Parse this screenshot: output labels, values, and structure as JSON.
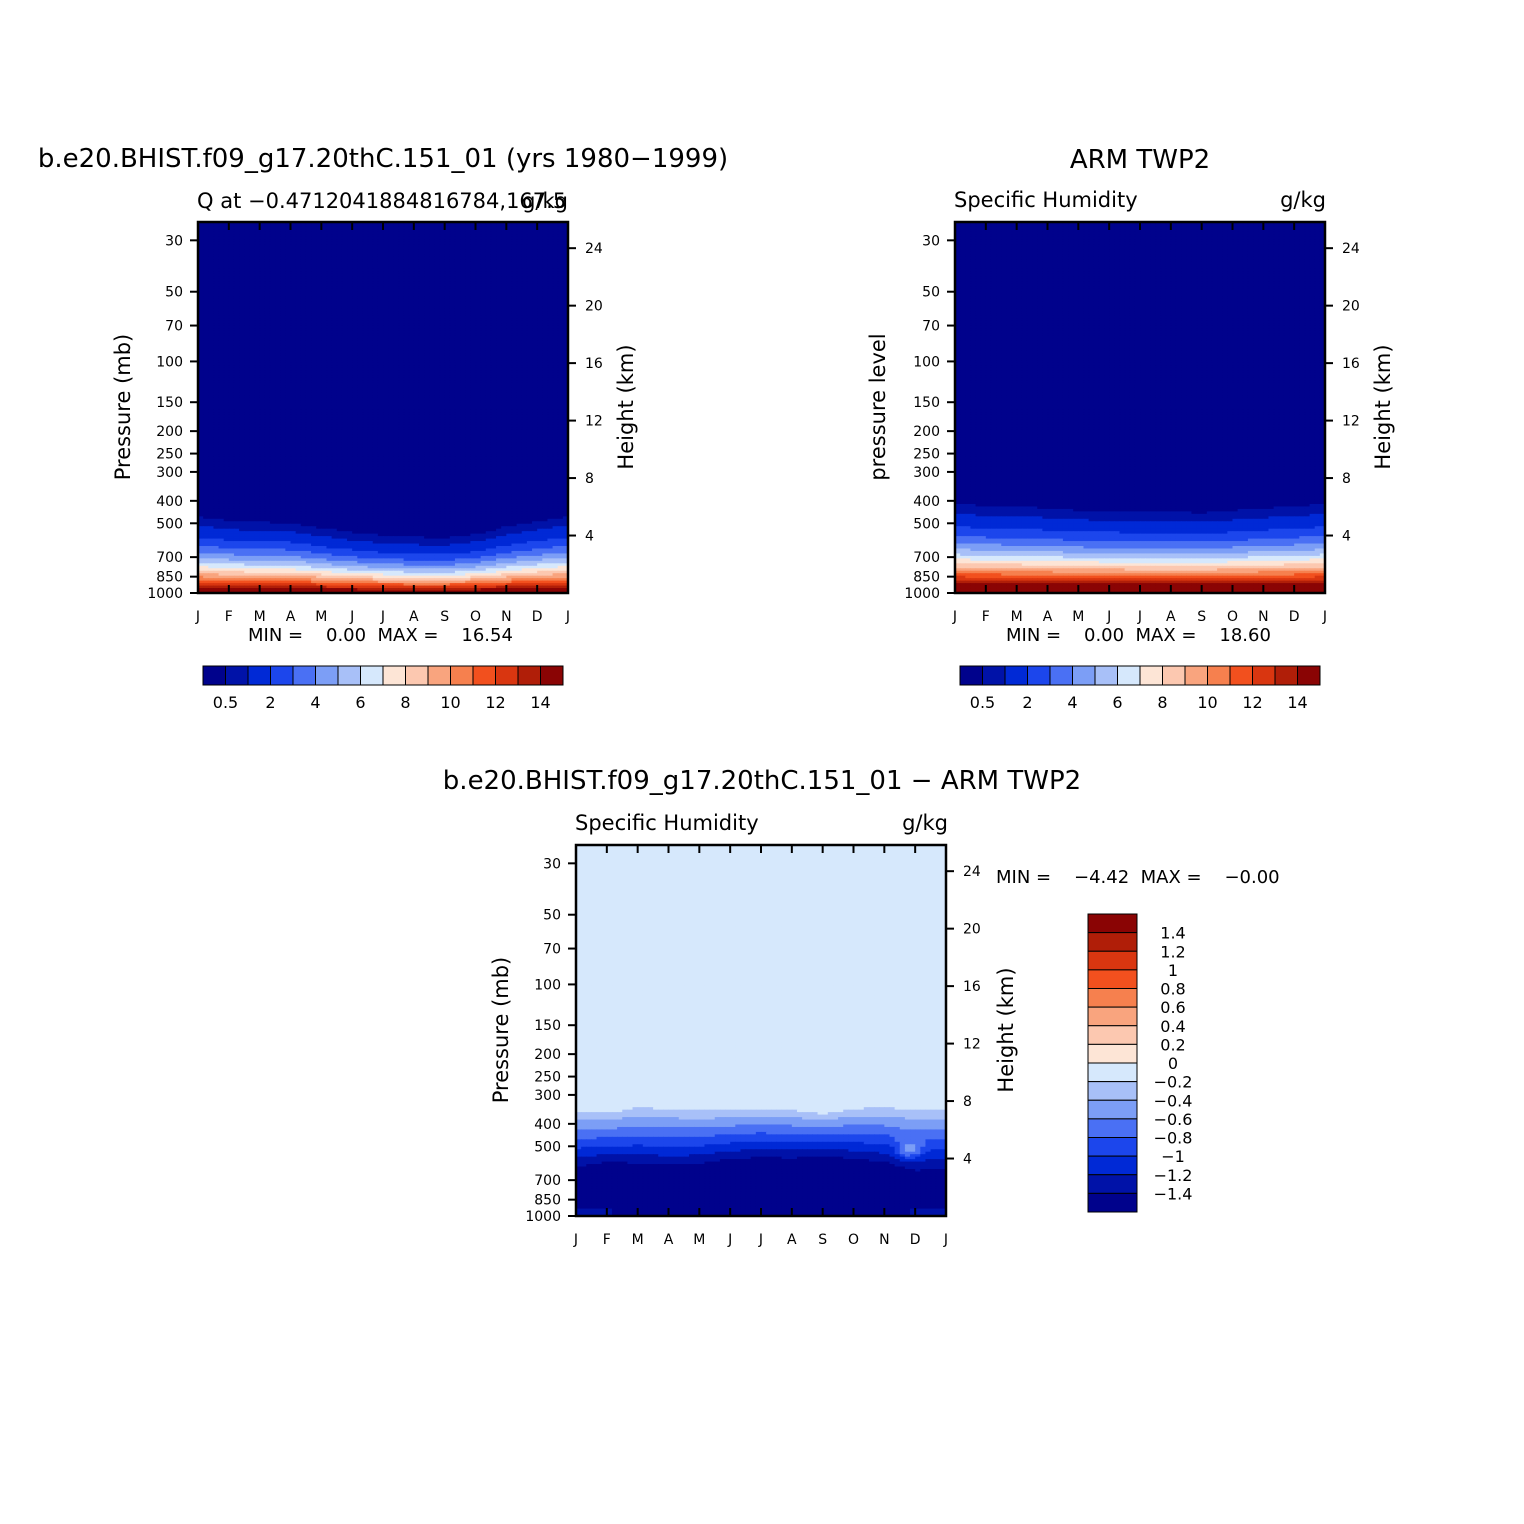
{
  "colors": {
    "seq": [
      "#00028c",
      "#0012a8",
      "#0029d6",
      "#1c46ec",
      "#4a70f4",
      "#7c9ef6",
      "#a8c0f8",
      "#d6e8fc",
      "#fde5d6",
      "#fcc8b0",
      "#f9a47e",
      "#f6804e",
      "#f2501e",
      "#d93610",
      "#b01e08",
      "#8a0404"
    ],
    "diff": [
      "#00028c",
      "#0012a8",
      "#0029d6",
      "#1c46ec",
      "#4a70f4",
      "#7c9ef6",
      "#a8c0f8",
      "#d6e8fc",
      "#fde5d6",
      "#fcc8b0",
      "#f9a47e",
      "#f6804e",
      "#f2501e",
      "#d93610",
      "#b01e08",
      "#8a0404"
    ]
  },
  "chart_data": [
    {
      "type": "heatmap",
      "id": "model",
      "title": "b.e20.BHIST.f09_g17.20thC.151_01 (yrs 1980−1999)",
      "subtitle_left": "Q at −0.4712041884816784,167.5",
      "subtitle_right": "g/kg",
      "ylabel": "Pressure (mb)",
      "y2label": "Height (km)",
      "x_ticks": [
        "J",
        "F",
        "M",
        "A",
        "M",
        "J",
        "J",
        "A",
        "S",
        "O",
        "N",
        "D",
        "J"
      ],
      "p_ticks": [
        30,
        50,
        70,
        100,
        150,
        200,
        250,
        300,
        400,
        500,
        700,
        850,
        1000
      ],
      "z_ticks": [
        24,
        20,
        16,
        12,
        8,
        4
      ],
      "stats": "MIN =    0.00  MAX =    16.54",
      "colorbar": {
        "labels": [
          "0.5",
          "2",
          "4",
          "6",
          "8",
          "10",
          "12",
          "14"
        ],
        "n_boxes": 16
      },
      "levels": [
        0.5,
        1,
        2,
        3,
        4,
        5,
        6,
        7,
        8,
        9,
        10,
        11,
        12,
        13,
        14
      ],
      "profile_top_mb": [
        370,
        385,
        390,
        395,
        410,
        420,
        430,
        435,
        440,
        430,
        405,
        385,
        370
      ],
      "profile_scale": [
        1.05,
        1.0,
        0.97,
        0.98,
        0.88,
        0.8,
        0.75,
        0.72,
        0.72,
        0.78,
        0.9,
        0.98,
        1.05
      ],
      "surface_q": 16.54
    },
    {
      "type": "heatmap",
      "id": "obs",
      "title": "ARM TWP2",
      "subtitle_left": "Specific Humidity",
      "subtitle_right": "g/kg",
      "ylabel": "pressure level",
      "y2label": "Height (km)",
      "x_ticks": [
        "J",
        "F",
        "M",
        "A",
        "M",
        "J",
        "J",
        "A",
        "S",
        "O",
        "N",
        "D",
        "J"
      ],
      "p_ticks": [
        30,
        50,
        70,
        100,
        150,
        200,
        250,
        300,
        400,
        500,
        700,
        850,
        1000
      ],
      "z_ticks": [
        24,
        20,
        16,
        12,
        8,
        4
      ],
      "stats": "MIN =    0.00  MAX =    18.60",
      "colorbar": {
        "labels": [
          "0.5",
          "2",
          "4",
          "6",
          "8",
          "10",
          "12",
          "14"
        ],
        "n_boxes": 16
      },
      "levels": [
        0.5,
        1,
        2,
        3,
        4,
        5,
        6,
        7,
        8,
        9,
        10,
        11,
        12,
        13,
        14
      ],
      "profile_top_mb": [
        320,
        330,
        330,
        335,
        345,
        345,
        345,
        350,
        355,
        345,
        335,
        330,
        320
      ],
      "profile_scale": [
        1.12,
        1.1,
        1.08,
        1.07,
        1.05,
        1.04,
        1.03,
        1.03,
        1.04,
        1.05,
        1.07,
        1.09,
        1.12
      ],
      "surface_q": 18.6
    },
    {
      "type": "heatmap",
      "id": "diff",
      "title": "b.e20.BHIST.f09_g17.20thC.151_01 − ARM TWP2",
      "subtitle_left": "Specific Humidity",
      "subtitle_right": "g/kg",
      "ylabel": "Pressure (mb)",
      "y2label": "Height (km)",
      "x_ticks": [
        "J",
        "F",
        "M",
        "A",
        "M",
        "J",
        "J",
        "A",
        "S",
        "O",
        "N",
        "D",
        "J"
      ],
      "p_ticks": [
        30,
        50,
        70,
        100,
        150,
        200,
        250,
        300,
        400,
        500,
        700,
        850,
        1000
      ],
      "z_ticks": [
        24,
        20,
        16,
        12,
        8,
        4
      ],
      "stats": "MIN =    −4.42  MAX =    −0.00",
      "colorbar": {
        "labels": [
          "1.4",
          "1.2",
          "1",
          "0.8",
          "0.6",
          "0.4",
          "0.2",
          "0",
          "−0.2",
          "−0.4",
          "−0.6",
          "−0.8",
          "−1",
          "−1.2",
          "−1.4"
        ],
        "n_boxes": 16
      },
      "levels": [
        -1.4,
        -1.2,
        -1,
        -0.8,
        -0.6,
        -0.4,
        -0.2,
        0,
        0.2,
        0.4,
        0.6,
        0.8,
        1,
        1.2,
        1.4
      ],
      "profile_top_mb": [
        340,
        350,
        330,
        335,
        340,
        340,
        335,
        340,
        355,
        335,
        330,
        335,
        340
      ],
      "profile_base_mb": [
        650,
        620,
        630,
        640,
        630,
        600,
        590,
        595,
        580,
        600,
        620,
        680,
        660
      ]
    }
  ]
}
